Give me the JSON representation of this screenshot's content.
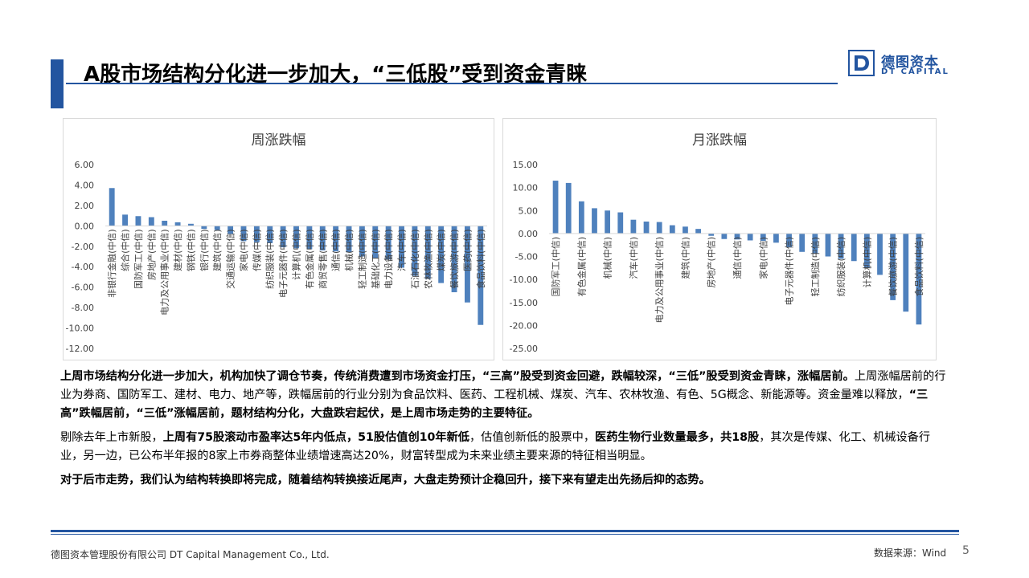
{
  "header": {
    "title": "A股市场结构分化进一步加大，“三低股”受到资金青睐"
  },
  "logo": {
    "cn": "德图资本",
    "en": "DT CAPITAL",
    "letter": "D"
  },
  "colors": {
    "accent": "#2355a0",
    "bar": "#4f81bd",
    "axis": "#d9d9d9",
    "tick_text": "#595959"
  },
  "chart_data": [
    {
      "type": "bar",
      "title": "周涨跌幅",
      "ylim": [
        -12,
        6
      ],
      "yticks": [
        "6.00",
        "4.00",
        "2.00",
        "0.00",
        "-2.00",
        "-4.00",
        "-6.00",
        "-8.00",
        "-10.00",
        "-12.00"
      ],
      "grid": false,
      "categories": [
        "非银行金融(中信)",
        "综合(中信)",
        "国防军工(中信)",
        "房地产(中信)",
        "电力及公用事业(中信)",
        "建材(中信)",
        "钢铁(中信)",
        "银行(中信)",
        "建筑(中信)",
        "交通运输(中信)",
        "家电(中信)",
        "传媒(中信)",
        "纺织服装(中信)",
        "电子元器件(中信)",
        "计算机(中信)",
        "有色金属(中信)",
        "商贸零售(中信)",
        "通信(中信)",
        "机械(中信)",
        "轻工制造(中信)",
        "基础化工(中信)",
        "电力设备(中信)",
        "汽车(中信)",
        "石油石化(中信)",
        "农林牧渔(中信)",
        "煤炭(中信)",
        "餐饮旅游(中信)",
        "医药(中信)",
        "食品饮料(中信)"
      ],
      "values": [
        3.7,
        1.1,
        0.95,
        0.85,
        0.5,
        0.35,
        0.2,
        -0.3,
        -0.4,
        -0.8,
        -1.5,
        -1.6,
        -1.7,
        -2.1,
        -2.2,
        -2.3,
        -2.4,
        -2.5,
        -2.6,
        -3.0,
        -3.2,
        -3.3,
        -4.1,
        -4.9,
        -5.2,
        -5.6,
        -6.5,
        -7.5,
        -9.7
      ]
    },
    {
      "type": "bar",
      "title": "月涨跌幅",
      "ylim": [
        -25,
        15
      ],
      "yticks": [
        "15.00",
        "10.00",
        "5.00",
        "0.00",
        "-5.00",
        "-10.00",
        "-15.00",
        "-20.00",
        "-25.00"
      ],
      "grid": false,
      "categories": [
        "国防军工(中信)",
        "",
        "有色金属(中信)",
        "",
        "机械(中信)",
        "",
        "汽车(中信)",
        "",
        "电力及公用事业(中信)",
        "",
        "建筑(中信)",
        "",
        "房地产(中信)",
        "",
        "通信(中信)",
        "",
        "家电(中信)",
        "",
        "电子元器件(中信)",
        "",
        "轻工制造(中信)",
        "",
        "纺织服装(中信)",
        "",
        "计算机(中信)",
        "",
        "餐饮旅游(中信)",
        "",
        "食品饮料(中信)"
      ],
      "values": [
        11.5,
        11.0,
        7.0,
        5.5,
        5.0,
        4.6,
        3.0,
        2.6,
        2.5,
        1.8,
        1.5,
        1.0,
        -0.5,
        -1.2,
        -1.3,
        -1.5,
        -1.6,
        -2.0,
        -3.0,
        -4.0,
        -4.3,
        -5.0,
        -5.5,
        -6.0,
        -7.5,
        -9.0,
        -14.5,
        -17.0,
        -19.8
      ]
    }
  ],
  "body": {
    "p1_bold": "上周市场结构分化进一步加大，机构加快了调仓节奏，传统消费遭到市场资金打压，“三高”股受到资金回避，跌幅较深，“三低”股受到资金青睐，涨幅居前。",
    "p1_normal": "上周涨幅居前的行业为券商、国防军工、建材、电力、地产等，跌幅居前的行业分别为食品饮料、医药、工程机械、煤炭、汽车、农林牧渔、有色、5G概念、新能源等。资金量难以释放，",
    "p1_bold2": "“三高”跌幅居前，“三低”涨幅居前，题材结构分化，大盘跌宕起伏，是上周市场走势的主要特征。",
    "p2_a": "剔除去年上市新股，",
    "p2_b": "上周有75股滚动市盈率达5年内低点，51股估值创10年新低",
    "p2_c": "，估值创新低的股票中，",
    "p2_d": "医药生物行业数量最多，共18股",
    "p2_e": "，其次是传媒、化工、机械设备行业，另一边，已公布半年报的8家上市券商整体业绩增速高达20%，财富转型成为未来业绩主要来源的特征相当明显。",
    "p3": "对于后市走势，我们认为结构转换即将完成，随着结构转换接近尾声，大盘走势预计企稳回升，接下来有望走出先扬后抑的态势。"
  },
  "footer": {
    "company": "德图资本管理股份有限公司 DT Capital Management Co., Ltd.",
    "source": "数据来源：Wind",
    "page": "5"
  }
}
